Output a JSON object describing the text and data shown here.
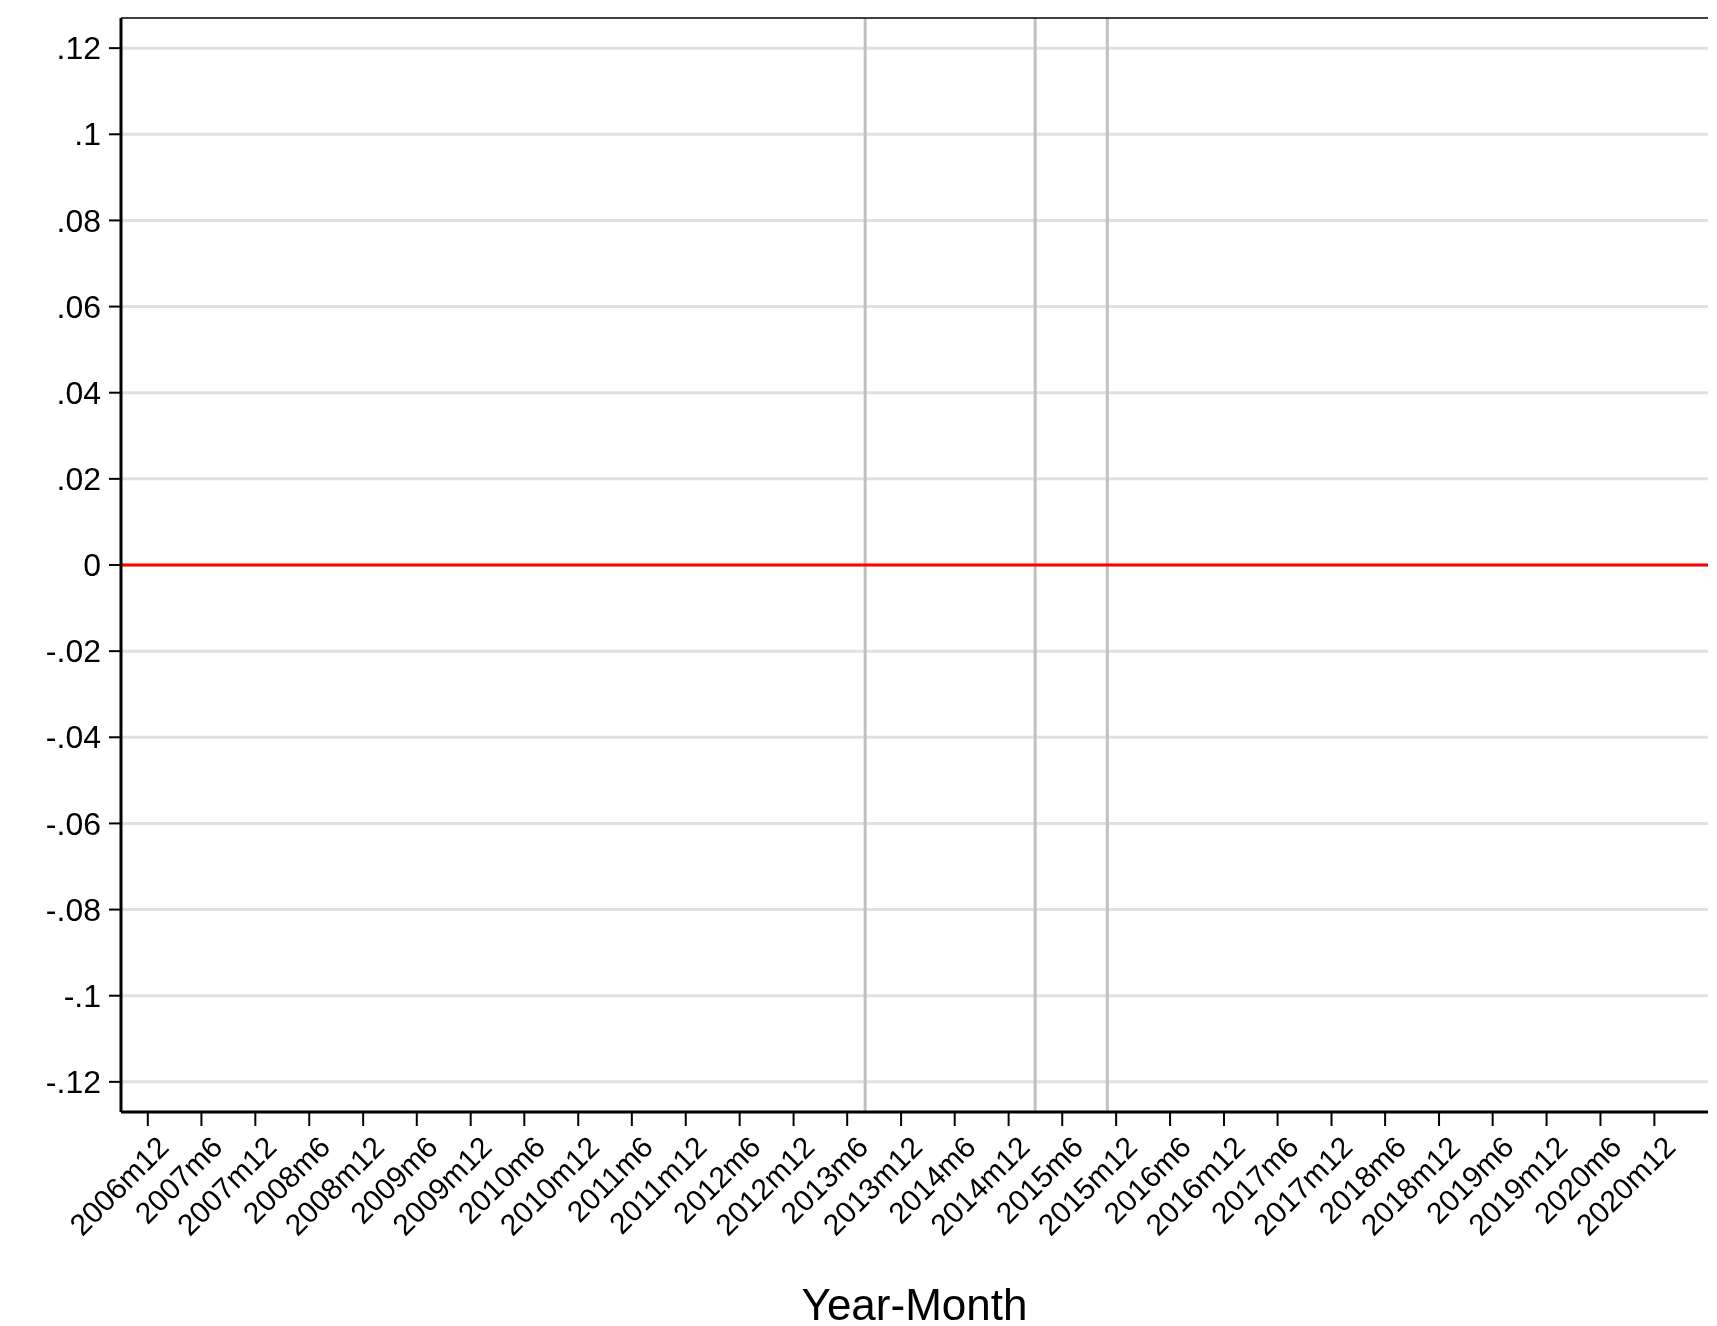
{
  "chart_data": {
    "type": "line",
    "xlabel": "Year-Month",
    "xlim": [
      "2006-09",
      "2021-06"
    ],
    "xticks": [
      {
        "value": "2006-12",
        "label": "2006m12"
      },
      {
        "value": "2007-06",
        "label": "2007m6"
      },
      {
        "value": "2007-12",
        "label": "2007m12"
      },
      {
        "value": "2008-06",
        "label": "2008m6"
      },
      {
        "value": "2008-12",
        "label": "2008m12"
      },
      {
        "value": "2009-06",
        "label": "2009m6"
      },
      {
        "value": "2009-12",
        "label": "2009m12"
      },
      {
        "value": "2010-06",
        "label": "2010m6"
      },
      {
        "value": "2010-12",
        "label": "2010m12"
      },
      {
        "value": "2011-06",
        "label": "2011m6"
      },
      {
        "value": "2011-12",
        "label": "2011m12"
      },
      {
        "value": "2012-06",
        "label": "2012m6"
      },
      {
        "value": "2012-12",
        "label": "2012m12"
      },
      {
        "value": "2013-06",
        "label": "2013m6"
      },
      {
        "value": "2013-12",
        "label": "2013m12"
      },
      {
        "value": "2014-06",
        "label": "2014m6"
      },
      {
        "value": "2014-12",
        "label": "2014m12"
      },
      {
        "value": "2015-06",
        "label": "2015m6"
      },
      {
        "value": "2015-12",
        "label": "2015m12"
      },
      {
        "value": "2016-06",
        "label": "2016m6"
      },
      {
        "value": "2016-12",
        "label": "2016m12"
      },
      {
        "value": "2017-06",
        "label": "2017m6"
      },
      {
        "value": "2017-12",
        "label": "2017m12"
      },
      {
        "value": "2018-06",
        "label": "2018m6"
      },
      {
        "value": "2018-12",
        "label": "2018m12"
      },
      {
        "value": "2019-06",
        "label": "2019m6"
      },
      {
        "value": "2019-12",
        "label": "2019m12"
      },
      {
        "value": "2020-06",
        "label": "2020m6"
      },
      {
        "value": "2020-12",
        "label": "2020m12"
      }
    ],
    "ylim": [
      -0.127,
      0.127
    ],
    "yticks": [
      {
        "value": -0.12,
        "label": "-.12"
      },
      {
        "value": -0.1,
        "label": "-.1"
      },
      {
        "value": -0.08,
        "label": "-.08"
      },
      {
        "value": -0.06,
        "label": "-.06"
      },
      {
        "value": -0.04,
        "label": "-.04"
      },
      {
        "value": -0.02,
        "label": "-.02"
      },
      0,
      {
        "value": 0.02,
        "label": ".02"
      },
      {
        "value": 0.04,
        "label": ".04"
      },
      {
        "value": 0.06,
        "label": ".06"
      },
      {
        "value": 0.08,
        "label": ".08"
      },
      {
        "value": 0.1,
        "label": ".1"
      },
      {
        "value": 0.12,
        "label": ".12"
      }
    ],
    "grid": "y",
    "ref_lines": [
      {
        "axis": "y",
        "value": 0,
        "color": "#ff0000"
      },
      {
        "axis": "x",
        "value": "2013-08",
        "color": "#c0c0c0"
      },
      {
        "axis": "x",
        "value": "2015-03",
        "color": "#c0c0c0"
      },
      {
        "axis": "x",
        "value": "2015-11",
        "color": "#c0c0c0"
      }
    ]
  }
}
